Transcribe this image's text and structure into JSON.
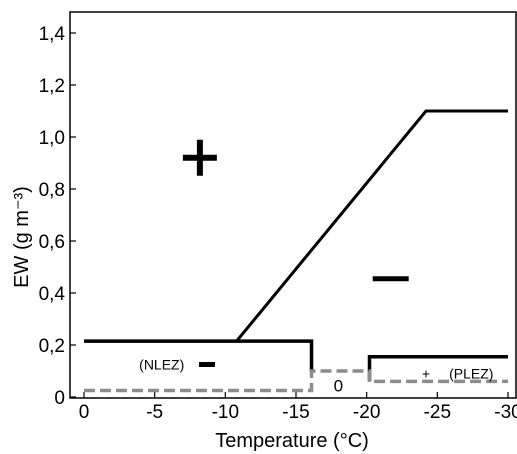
{
  "chart_data": {
    "type": "line",
    "xlabel": "Temperature (°C)",
    "ylabel": "EW (g m⁻³)",
    "x_ticks": [
      "0",
      "-5",
      "-10",
      "-15",
      "-20",
      "-25",
      "-30"
    ],
    "y_ticks": [
      "0",
      "0,2",
      "0,4",
      "0,6",
      "0,8",
      "1,0",
      "1,2",
      "1,4"
    ],
    "xlim": [
      0,
      -30
    ],
    "ylim": [
      0,
      1.45
    ],
    "grid": false,
    "series": [
      {
        "style": "solid-black",
        "points": [
          [
            0,
            0.215
          ],
          [
            -10.8,
            0.215
          ],
          [
            -24.2,
            1.1
          ],
          [
            -30,
            1.1
          ]
        ]
      },
      {
        "style": "solid-black",
        "points": [
          [
            0,
            0.215
          ],
          [
            -16.1,
            0.215
          ],
          [
            -16.1,
            0.1
          ]
        ]
      },
      {
        "style": "solid-black",
        "points": [
          [
            -20.2,
            0.06
          ],
          [
            -20.2,
            0.155
          ],
          [
            -30,
            0.155
          ]
        ]
      },
      {
        "style": "dashed-gray",
        "points": [
          [
            0,
            0.025
          ],
          [
            -16.1,
            0.025
          ],
          [
            -16.1,
            0.1
          ],
          [
            -20.2,
            0.1
          ],
          [
            -20.2,
            0.06
          ],
          [
            -30,
            0.06
          ]
        ]
      }
    ],
    "annotations": [
      {
        "text": "+",
        "x": -8.2,
        "y": 0.92,
        "size": "large"
      },
      {
        "text": "−",
        "x": -21.7,
        "y": 0.455,
        "size": "large"
      },
      {
        "text": "(NLEZ)",
        "x": -5.5,
        "y": 0.125,
        "size": "small"
      },
      {
        "text": "−",
        "x": -8.7,
        "y": 0.125,
        "size": "medium"
      },
      {
        "text": "0",
        "x": -18.0,
        "y": 0.045,
        "size": "medium"
      },
      {
        "text": "+",
        "x": -24.2,
        "y": 0.09,
        "size": "small"
      },
      {
        "text": "(PLEZ)",
        "x": -27.4,
        "y": 0.09,
        "size": "small"
      }
    ]
  }
}
